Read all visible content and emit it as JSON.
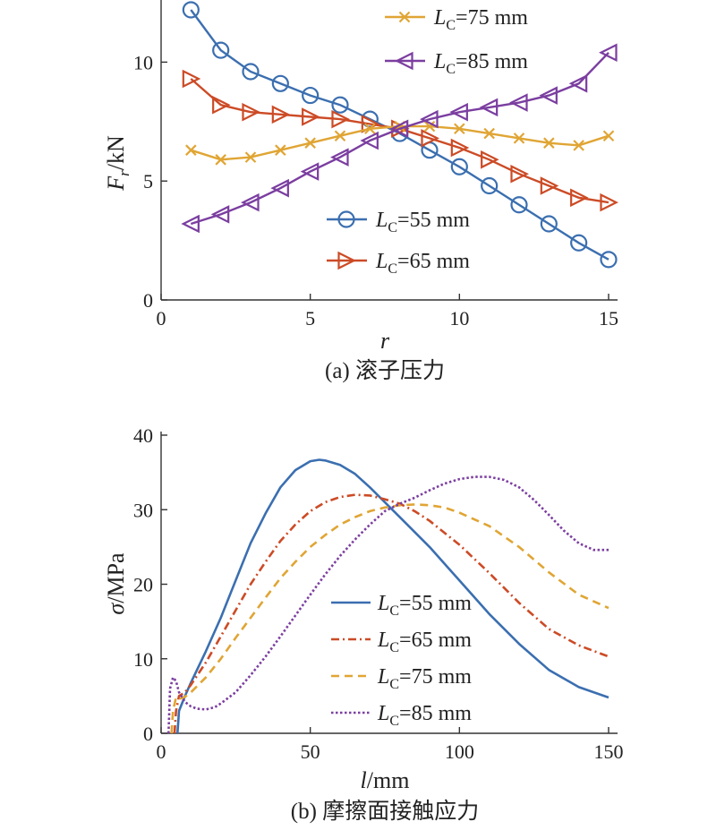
{
  "colors": {
    "axis": "#333333",
    "lc55": "#3b6fb0",
    "lc65": "#cc4b26",
    "lc75": "#e0a534",
    "lc85": "#7b3ea0"
  },
  "chart_data": [
    {
      "type": "line",
      "caption": "(a) 滚子压力",
      "xlabel": "r",
      "ylabel_main": "F",
      "ylabel_sub": "r",
      "ylabel_unit": "/kN",
      "xlim": [
        0,
        15
      ],
      "ylim": [
        0,
        12.5
      ],
      "xticks": [
        0,
        5,
        10,
        15
      ],
      "yticks": [
        0,
        5,
        10
      ],
      "grid": false,
      "x": [
        1,
        2,
        3,
        4,
        5,
        6,
        7,
        8,
        9,
        10,
        11,
        12,
        13,
        14,
        15
      ],
      "series": [
        {
          "name_main": "L",
          "name_sub": "C",
          "name_rest": "=55 mm",
          "marker": "circle",
          "color": "#3b6fb0",
          "values": [
            12.2,
            10.5,
            9.6,
            9.1,
            8.6,
            8.2,
            7.6,
            7.0,
            6.3,
            5.6,
            4.8,
            4.0,
            3.2,
            2.4,
            1.7
          ]
        },
        {
          "name_main": "L",
          "name_sub": "C",
          "name_rest": "=65 mm",
          "marker": "triangle-right",
          "color": "#cc4b26",
          "values": [
            9.3,
            8.2,
            7.9,
            7.8,
            7.7,
            7.6,
            7.4,
            7.2,
            6.8,
            6.4,
            5.9,
            5.3,
            4.8,
            4.3,
            4.1
          ]
        },
        {
          "name_main": "L",
          "name_sub": "C",
          "name_rest": "=75 mm",
          "marker": "x",
          "color": "#e0a534",
          "values": [
            6.3,
            5.9,
            6.0,
            6.3,
            6.6,
            6.9,
            7.2,
            7.3,
            7.3,
            7.2,
            7.0,
            6.8,
            6.6,
            6.5,
            6.9
          ]
        },
        {
          "name_main": "L",
          "name_sub": "C",
          "name_rest": "=85 mm",
          "marker": "triangle-left",
          "color": "#7b3ea0",
          "values": [
            3.2,
            3.6,
            4.1,
            4.7,
            5.4,
            6.0,
            6.7,
            7.2,
            7.6,
            7.9,
            8.1,
            8.3,
            8.6,
            9.1,
            10.4
          ]
        }
      ]
    },
    {
      "type": "line",
      "caption": "(b) 摩擦面接触应力",
      "xlabel_main": "l",
      "xlabel_unit": "/mm",
      "ylabel_main": "σ",
      "ylabel_unit": "/MPa",
      "xlim": [
        0,
        150
      ],
      "ylim": [
        0,
        40
      ],
      "xticks": [
        0,
        50,
        100,
        150
      ],
      "yticks": [
        0,
        10,
        20,
        30,
        40
      ],
      "grid": false,
      "series": [
        {
          "name_main": "L",
          "name_sub": "C",
          "name_rest": "=55 mm",
          "dash": "solid",
          "color": "#3b6fb0",
          "x": [
            5.5,
            6,
            8,
            10,
            15,
            20,
            25,
            30,
            35,
            40,
            45,
            50,
            53,
            55,
            60,
            65,
            70,
            75,
            80,
            85,
            90,
            100,
            110,
            120,
            130,
            140,
            150
          ],
          "y": [
            0,
            3,
            5,
            6.8,
            11,
            15.5,
            20.5,
            25.5,
            29.5,
            33,
            35.3,
            36.5,
            36.7,
            36.6,
            36,
            34.8,
            33,
            31,
            29,
            27,
            25,
            20.5,
            16,
            12,
            8.5,
            6.2,
            4.8
          ]
        },
        {
          "name_main": "L",
          "name_sub": "C",
          "name_rest": "=65 mm",
          "dash": "dashdot",
          "color": "#cc4b26",
          "x": [
            4.5,
            5,
            6,
            8,
            10,
            15,
            20,
            25,
            30,
            35,
            40,
            45,
            50,
            55,
            60,
            65,
            70,
            75,
            80,
            85,
            90,
            100,
            110,
            120,
            130,
            140,
            150
          ],
          "y": [
            0,
            3,
            5,
            5.5,
            6.5,
            9.5,
            13,
            16.5,
            20,
            23,
            25.8,
            28,
            29.8,
            31,
            31.7,
            32,
            31.9,
            31.4,
            30.8,
            29.8,
            28.5,
            25.3,
            21.5,
            17.5,
            14,
            11.8,
            10.3
          ]
        },
        {
          "name_main": "L",
          "name_sub": "C",
          "name_rest": "=75 mm",
          "dash": "dashed",
          "color": "#e0a534",
          "x": [
            3.5,
            4,
            5,
            6,
            8,
            10,
            15,
            20,
            25,
            30,
            35,
            40,
            45,
            50,
            55,
            60,
            65,
            70,
            75,
            80,
            85,
            90,
            95,
            100,
            110,
            120,
            130,
            140,
            150
          ],
          "y": [
            0,
            3,
            4.8,
            4.6,
            4.9,
            5.5,
            7.5,
            10,
            12.8,
            15.5,
            18.2,
            20.8,
            23,
            25,
            26.6,
            28,
            29,
            29.8,
            30.3,
            30.6,
            30.7,
            30.6,
            30.3,
            29.6,
            27.8,
            25,
            21.6,
            18.6,
            16.8
          ]
        },
        {
          "name_main": "L",
          "name_sub": "C",
          "name_rest": "=85 mm",
          "dash": "dotted",
          "color": "#7b3ea0",
          "x": [
            2.5,
            3,
            4,
            5,
            6,
            8,
            10,
            12,
            15,
            18,
            20,
            25,
            30,
            35,
            40,
            45,
            50,
            55,
            60,
            65,
            70,
            75,
            80,
            85,
            90,
            95,
            100,
            105,
            110,
            115,
            120,
            125,
            130,
            135,
            140,
            145,
            150
          ],
          "y": [
            0,
            6,
            7.5,
            7,
            5.5,
            4.2,
            3.6,
            3.3,
            3.2,
            3.5,
            4,
            5.5,
            7.8,
            10.3,
            13,
            15.8,
            18.6,
            21.3,
            23.8,
            26,
            28,
            29.8,
            30.8,
            31.6,
            32.6,
            33.5,
            34.1,
            34.4,
            34.4,
            34,
            33,
            31.3,
            29.3,
            27.2,
            25.5,
            24.6,
            24.6
          ]
        }
      ]
    }
  ]
}
